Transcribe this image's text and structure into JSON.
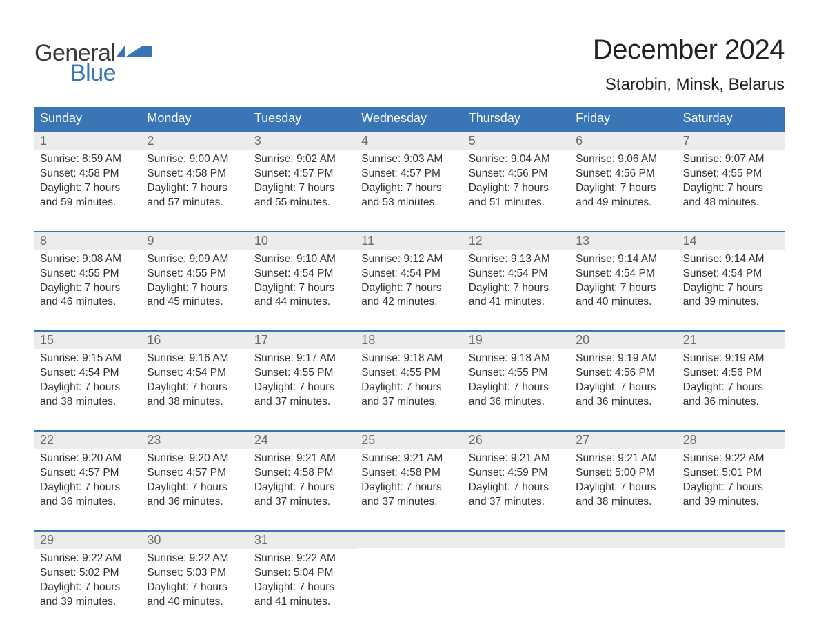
{
  "logo": {
    "part1": "General",
    "part2": "Blue",
    "icon_color": "#3a76b5",
    "text1_color": "#3a3a3a"
  },
  "title": "December 2024",
  "location": "Starobin, Minsk, Belarus",
  "colors": {
    "header_bg": "#3a76b5",
    "header_text": "#ffffff",
    "week_border": "#3a76b5",
    "daynum_bg": "#ececec",
    "daynum_text": "#6b6b6b",
    "body_text": "#333333",
    "background": "#ffffff"
  },
  "fonts": {
    "month_title_pt": 40,
    "location_pt": 24,
    "dayhead_pt": 18,
    "daynum_pt": 18,
    "cell_line_pt": 15.5
  },
  "day_headers": [
    "Sunday",
    "Monday",
    "Tuesday",
    "Wednesday",
    "Thursday",
    "Friday",
    "Saturday"
  ],
  "label_sunrise": "Sunrise: ",
  "label_sunset": "Sunset: ",
  "label_daylight1": "Daylight: ",
  "label_daylight_hours": " hours",
  "label_and": "and ",
  "label_minutes": " minutes.",
  "weeks": [
    [
      {
        "n": "1",
        "sr": "8:59 AM",
        "ss": "4:58 PM",
        "dh": "7",
        "dm": "59"
      },
      {
        "n": "2",
        "sr": "9:00 AM",
        "ss": "4:58 PM",
        "dh": "7",
        "dm": "57"
      },
      {
        "n": "3",
        "sr": "9:02 AM",
        "ss": "4:57 PM",
        "dh": "7",
        "dm": "55"
      },
      {
        "n": "4",
        "sr": "9:03 AM",
        "ss": "4:57 PM",
        "dh": "7",
        "dm": "53"
      },
      {
        "n": "5",
        "sr": "9:04 AM",
        "ss": "4:56 PM",
        "dh": "7",
        "dm": "51"
      },
      {
        "n": "6",
        "sr": "9:06 AM",
        "ss": "4:56 PM",
        "dh": "7",
        "dm": "49"
      },
      {
        "n": "7",
        "sr": "9:07 AM",
        "ss": "4:55 PM",
        "dh": "7",
        "dm": "48"
      }
    ],
    [
      {
        "n": "8",
        "sr": "9:08 AM",
        "ss": "4:55 PM",
        "dh": "7",
        "dm": "46"
      },
      {
        "n": "9",
        "sr": "9:09 AM",
        "ss": "4:55 PM",
        "dh": "7",
        "dm": "45"
      },
      {
        "n": "10",
        "sr": "9:10 AM",
        "ss": "4:54 PM",
        "dh": "7",
        "dm": "44"
      },
      {
        "n": "11",
        "sr": "9:12 AM",
        "ss": "4:54 PM",
        "dh": "7",
        "dm": "42"
      },
      {
        "n": "12",
        "sr": "9:13 AM",
        "ss": "4:54 PM",
        "dh": "7",
        "dm": "41"
      },
      {
        "n": "13",
        "sr": "9:14 AM",
        "ss": "4:54 PM",
        "dh": "7",
        "dm": "40"
      },
      {
        "n": "14",
        "sr": "9:14 AM",
        "ss": "4:54 PM",
        "dh": "7",
        "dm": "39"
      }
    ],
    [
      {
        "n": "15",
        "sr": "9:15 AM",
        "ss": "4:54 PM",
        "dh": "7",
        "dm": "38"
      },
      {
        "n": "16",
        "sr": "9:16 AM",
        "ss": "4:54 PM",
        "dh": "7",
        "dm": "38"
      },
      {
        "n": "17",
        "sr": "9:17 AM",
        "ss": "4:55 PM",
        "dh": "7",
        "dm": "37"
      },
      {
        "n": "18",
        "sr": "9:18 AM",
        "ss": "4:55 PM",
        "dh": "7",
        "dm": "37"
      },
      {
        "n": "19",
        "sr": "9:18 AM",
        "ss": "4:55 PM",
        "dh": "7",
        "dm": "36"
      },
      {
        "n": "20",
        "sr": "9:19 AM",
        "ss": "4:56 PM",
        "dh": "7",
        "dm": "36"
      },
      {
        "n": "21",
        "sr": "9:19 AM",
        "ss": "4:56 PM",
        "dh": "7",
        "dm": "36"
      }
    ],
    [
      {
        "n": "22",
        "sr": "9:20 AM",
        "ss": "4:57 PM",
        "dh": "7",
        "dm": "36"
      },
      {
        "n": "23",
        "sr": "9:20 AM",
        "ss": "4:57 PM",
        "dh": "7",
        "dm": "36"
      },
      {
        "n": "24",
        "sr": "9:21 AM",
        "ss": "4:58 PM",
        "dh": "7",
        "dm": "37"
      },
      {
        "n": "25",
        "sr": "9:21 AM",
        "ss": "4:58 PM",
        "dh": "7",
        "dm": "37"
      },
      {
        "n": "26",
        "sr": "9:21 AM",
        "ss": "4:59 PM",
        "dh": "7",
        "dm": "37"
      },
      {
        "n": "27",
        "sr": "9:21 AM",
        "ss": "5:00 PM",
        "dh": "7",
        "dm": "38"
      },
      {
        "n": "28",
        "sr": "9:22 AM",
        "ss": "5:01 PM",
        "dh": "7",
        "dm": "39"
      }
    ],
    [
      {
        "n": "29",
        "sr": "9:22 AM",
        "ss": "5:02 PM",
        "dh": "7",
        "dm": "39"
      },
      {
        "n": "30",
        "sr": "9:22 AM",
        "ss": "5:03 PM",
        "dh": "7",
        "dm": "40"
      },
      {
        "n": "31",
        "sr": "9:22 AM",
        "ss": "5:04 PM",
        "dh": "7",
        "dm": "41"
      },
      null,
      null,
      null,
      null
    ]
  ]
}
